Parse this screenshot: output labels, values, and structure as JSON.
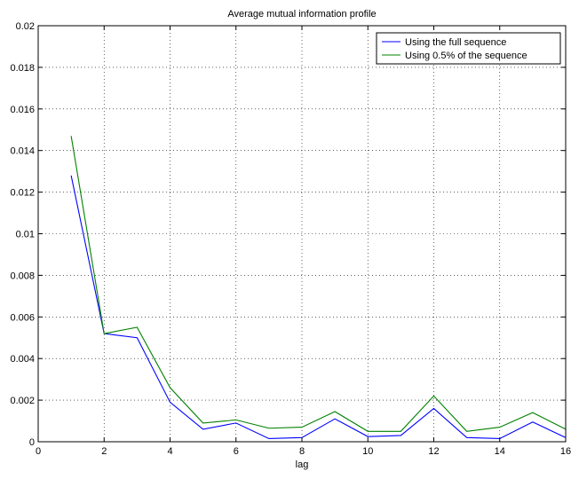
{
  "chart_data": {
    "type": "line",
    "title": "Average mutual information profile",
    "xlabel": "lag",
    "ylabel": "",
    "xlim": [
      0,
      16
    ],
    "ylim": [
      0,
      0.02
    ],
    "x_ticks": [
      0,
      2,
      4,
      6,
      8,
      10,
      12,
      14,
      16
    ],
    "y_ticks": [
      0,
      0.002,
      0.004,
      0.006,
      0.008,
      0.01,
      0.012,
      0.014,
      0.016,
      0.018,
      0.02
    ],
    "x_tick_labels": [
      "0",
      "2",
      "4",
      "6",
      "8",
      "10",
      "12",
      "14",
      "16"
    ],
    "y_tick_labels": [
      "0",
      "0.002",
      "0.004",
      "0.006",
      "0.008",
      "0.01",
      "0.012",
      "0.014",
      "0.016",
      "0.018",
      "0.02"
    ],
    "grid": true,
    "legend_position": "top-right",
    "x": [
      1,
      2,
      3,
      4,
      5,
      6,
      7,
      8,
      9,
      10,
      11,
      12,
      13,
      14,
      15,
      16
    ],
    "series": [
      {
        "name": "Using the full sequence",
        "color": "#0000ff",
        "values": [
          0.0128,
          0.0052,
          0.005,
          0.0019,
          0.0006,
          0.0009,
          0.00015,
          0.0002,
          0.0011,
          0.00025,
          0.0003,
          0.0016,
          0.0002,
          0.00015,
          0.00095,
          0.0002
        ]
      },
      {
        "name": "Using 0.5% of the sequence",
        "color": "#008000",
        "values": [
          0.0147,
          0.0052,
          0.0055,
          0.0026,
          0.0009,
          0.00105,
          0.00065,
          0.0007,
          0.00145,
          0.0005,
          0.0005,
          0.0022,
          0.0005,
          0.0007,
          0.0014,
          0.0006
        ]
      }
    ]
  }
}
